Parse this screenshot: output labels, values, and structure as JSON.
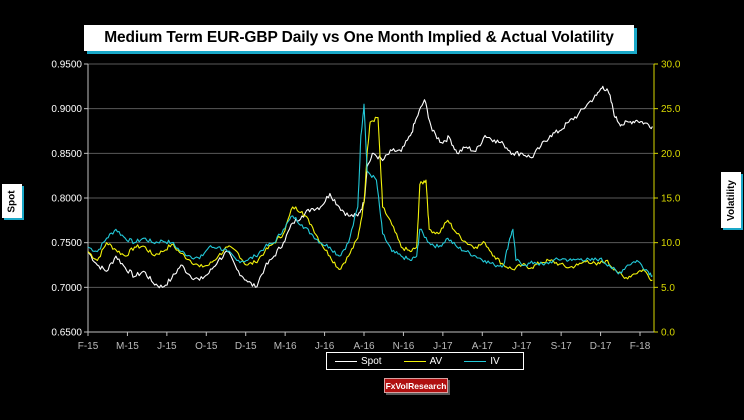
{
  "chart_data": {
    "type": "line",
    "title": "Medium Term EUR-GBP Daily vs One Month Implied & Actual Volatility",
    "ylabel_left": "Spot",
    "ylabel_right": "Volatility",
    "xlabel": "",
    "x_ticks": [
      "F-15",
      "M-15",
      "J-15",
      "O-15",
      "D-15",
      "M-16",
      "J-16",
      "A-16",
      "N-16",
      "J-17",
      "A-17",
      "J-17",
      "S-17",
      "D-17",
      "F-18"
    ],
    "x_range": [
      0,
      36.5
    ],
    "x_unit": "months since Feb 2015",
    "ylim_left": [
      0.65,
      0.95
    ],
    "yticks_left": [
      "0.6500",
      "0.7000",
      "0.7500",
      "0.8000",
      "0.8500",
      "0.9000",
      "0.9500"
    ],
    "ylim_right": [
      0,
      30
    ],
    "yticks_right": [
      "0.0",
      "5.0",
      "10.0",
      "15.0",
      "20.0",
      "25.0",
      "30.0"
    ],
    "grid": "horizontal",
    "legend": "bottom-center",
    "series": [
      {
        "name": "Spot",
        "axis": "left",
        "color": "#ffffff",
        "points": [
          [
            0,
            0.74
          ],
          [
            0.6,
            0.725
          ],
          [
            1.2,
            0.718
          ],
          [
            1.8,
            0.735
          ],
          [
            2.4,
            0.722
          ],
          [
            3.0,
            0.712
          ],
          [
            3.6,
            0.718
          ],
          [
            4.2,
            0.705
          ],
          [
            4.8,
            0.7
          ],
          [
            5.4,
            0.71
          ],
          [
            6.0,
            0.725
          ],
          [
            6.6,
            0.713
          ],
          [
            7.2,
            0.708
          ],
          [
            7.8,
            0.716
          ],
          [
            8.4,
            0.73
          ],
          [
            9.0,
            0.74
          ],
          [
            9.6,
            0.72
          ],
          [
            10.2,
            0.708
          ],
          [
            10.8,
            0.7
          ],
          [
            11.4,
            0.722
          ],
          [
            12.0,
            0.735
          ],
          [
            12.6,
            0.75
          ],
          [
            13.2,
            0.772
          ],
          [
            13.8,
            0.78
          ],
          [
            14.4,
            0.788
          ],
          [
            15.0,
            0.79
          ],
          [
            15.6,
            0.805
          ],
          [
            16.2,
            0.79
          ],
          [
            16.8,
            0.78
          ],
          [
            17.4,
            0.78
          ],
          [
            17.8,
            0.795
          ],
          [
            18.0,
            0.835
          ],
          [
            18.4,
            0.85
          ],
          [
            19.0,
            0.842
          ],
          [
            19.6,
            0.853
          ],
          [
            20.2,
            0.852
          ],
          [
            20.8,
            0.87
          ],
          [
            21.2,
            0.89
          ],
          [
            21.7,
            0.91
          ],
          [
            22.2,
            0.875
          ],
          [
            22.8,
            0.862
          ],
          [
            23.3,
            0.868
          ],
          [
            23.8,
            0.85
          ],
          [
            24.4,
            0.857
          ],
          [
            25.0,
            0.852
          ],
          [
            25.6,
            0.87
          ],
          [
            26.2,
            0.865
          ],
          [
            26.8,
            0.86
          ],
          [
            27.4,
            0.85
          ],
          [
            28.0,
            0.85
          ],
          [
            28.6,
            0.845
          ],
          [
            29.2,
            0.858
          ],
          [
            29.8,
            0.87
          ],
          [
            30.4,
            0.875
          ],
          [
            31.0,
            0.885
          ],
          [
            31.6,
            0.893
          ],
          [
            32.2,
            0.905
          ],
          [
            32.8,
            0.915
          ],
          [
            33.2,
            0.925
          ],
          [
            33.6,
            0.917
          ],
          [
            34.0,
            0.89
          ],
          [
            34.4,
            0.882
          ],
          [
            34.9,
            0.885
          ],
          [
            35.4,
            0.887
          ],
          [
            35.9,
            0.884
          ],
          [
            36.4,
            0.88
          ]
        ]
      },
      {
        "name": "AV",
        "axis": "right",
        "color": "#f2f20a",
        "points": [
          [
            0,
            9.0
          ],
          [
            0.6,
            8.0
          ],
          [
            1.2,
            10.0
          ],
          [
            1.8,
            9.2
          ],
          [
            2.4,
            8.5
          ],
          [
            3.0,
            9.5
          ],
          [
            3.6,
            9.6
          ],
          [
            4.2,
            8.6
          ],
          [
            4.8,
            9.0
          ],
          [
            5.4,
            9.8
          ],
          [
            6.0,
            8.8
          ],
          [
            6.6,
            8.0
          ],
          [
            7.2,
            7.3
          ],
          [
            7.8,
            7.5
          ],
          [
            8.4,
            8.5
          ],
          [
            9.0,
            9.5
          ],
          [
            9.6,
            9.0
          ],
          [
            10.2,
            7.5
          ],
          [
            10.8,
            7.8
          ],
          [
            11.4,
            9.0
          ],
          [
            12.0,
            10.0
          ],
          [
            12.6,
            11.0
          ],
          [
            13.2,
            14.0
          ],
          [
            13.8,
            13.5
          ],
          [
            14.4,
            12.0
          ],
          [
            15.0,
            10.0
          ],
          [
            15.6,
            8.5
          ],
          [
            16.2,
            7.0
          ],
          [
            16.8,
            8.5
          ],
          [
            17.4,
            10.5
          ],
          [
            17.8,
            14.5
          ],
          [
            18.0,
            20.0
          ],
          [
            18.2,
            23.5
          ],
          [
            18.7,
            24.0
          ],
          [
            19.0,
            14.0
          ],
          [
            19.6,
            12.0
          ],
          [
            20.2,
            9.5
          ],
          [
            20.8,
            9.0
          ],
          [
            21.2,
            9.5
          ],
          [
            21.4,
            16.5
          ],
          [
            21.8,
            17.0
          ],
          [
            22.0,
            11.5
          ],
          [
            22.6,
            11.0
          ],
          [
            23.2,
            12.5
          ],
          [
            23.8,
            11.0
          ],
          [
            24.4,
            10.0
          ],
          [
            25.0,
            9.5
          ],
          [
            25.6,
            10.0
          ],
          [
            26.2,
            8.5
          ],
          [
            26.8,
            7.5
          ],
          [
            27.4,
            7.0
          ],
          [
            28.0,
            7.5
          ],
          [
            28.6,
            7.2
          ],
          [
            29.2,
            7.8
          ],
          [
            29.8,
            8.0
          ],
          [
            30.4,
            7.6
          ],
          [
            31.0,
            7.2
          ],
          [
            31.6,
            7.5
          ],
          [
            32.2,
            8.0
          ],
          [
            32.8,
            7.5
          ],
          [
            33.4,
            8.0
          ],
          [
            34.0,
            7.0
          ],
          [
            34.6,
            6.0
          ],
          [
            35.2,
            6.5
          ],
          [
            35.8,
            7.0
          ],
          [
            36.4,
            5.8
          ]
        ]
      },
      {
        "name": "IV",
        "axis": "right",
        "color": "#22c8d8",
        "points": [
          [
            0,
            9.5
          ],
          [
            0.6,
            9.0
          ],
          [
            1.2,
            10.5
          ],
          [
            1.8,
            11.5
          ],
          [
            2.4,
            10.5
          ],
          [
            3.0,
            10.0
          ],
          [
            3.6,
            10.5
          ],
          [
            4.2,
            10.0
          ],
          [
            4.8,
            10.2
          ],
          [
            5.4,
            10.0
          ],
          [
            6.0,
            9.0
          ],
          [
            6.6,
            8.5
          ],
          [
            7.2,
            8.2
          ],
          [
            7.8,
            9.5
          ],
          [
            8.4,
            9.5
          ],
          [
            9.0,
            9.0
          ],
          [
            9.6,
            8.0
          ],
          [
            10.2,
            8.0
          ],
          [
            10.8,
            8.5
          ],
          [
            11.4,
            9.5
          ],
          [
            12.0,
            10.0
          ],
          [
            12.6,
            11.5
          ],
          [
            13.2,
            13.0
          ],
          [
            13.8,
            12.0
          ],
          [
            14.4,
            11.0
          ],
          [
            15.0,
            10.0
          ],
          [
            15.6,
            9.5
          ],
          [
            16.2,
            8.5
          ],
          [
            16.8,
            10.0
          ],
          [
            17.4,
            14.0
          ],
          [
            17.6,
            22.0
          ],
          [
            17.8,
            25.5
          ],
          [
            18.0,
            18.0
          ],
          [
            18.6,
            17.0
          ],
          [
            19.0,
            11.0
          ],
          [
            19.6,
            9.0
          ],
          [
            20.2,
            8.5
          ],
          [
            20.8,
            8.0
          ],
          [
            21.2,
            8.5
          ],
          [
            21.4,
            11.5
          ],
          [
            22.0,
            10.0
          ],
          [
            22.6,
            9.5
          ],
          [
            23.2,
            10.5
          ],
          [
            23.8,
            9.5
          ],
          [
            24.4,
            9.0
          ],
          [
            25.0,
            8.5
          ],
          [
            25.6,
            8.0
          ],
          [
            26.2,
            7.5
          ],
          [
            26.8,
            7.5
          ],
          [
            27.2,
            10.5
          ],
          [
            27.4,
            11.5
          ],
          [
            27.6,
            8.0
          ],
          [
            28.2,
            7.5
          ],
          [
            28.8,
            7.8
          ],
          [
            29.4,
            7.5
          ],
          [
            30.0,
            8.0
          ],
          [
            30.6,
            8.2
          ],
          [
            31.2,
            8.0
          ],
          [
            31.8,
            8.2
          ],
          [
            32.4,
            8.0
          ],
          [
            33.0,
            8.2
          ],
          [
            33.6,
            7.5
          ],
          [
            34.2,
            6.5
          ],
          [
            34.8,
            7.5
          ],
          [
            35.4,
            8.0
          ],
          [
            36.0,
            7.0
          ],
          [
            36.4,
            6.3
          ]
        ]
      }
    ]
  },
  "legend": {
    "spot": "Spot",
    "av": "AV",
    "iv": "IV"
  },
  "footer": {
    "badge": "FxVolResearch"
  },
  "colors": {
    "spot": "#ffffff",
    "av": "#f2f20a",
    "iv": "#22c8d8",
    "grid": "#5a5a5a",
    "axis_left": "#c0c0c0",
    "axis_right": "#d8d800"
  }
}
